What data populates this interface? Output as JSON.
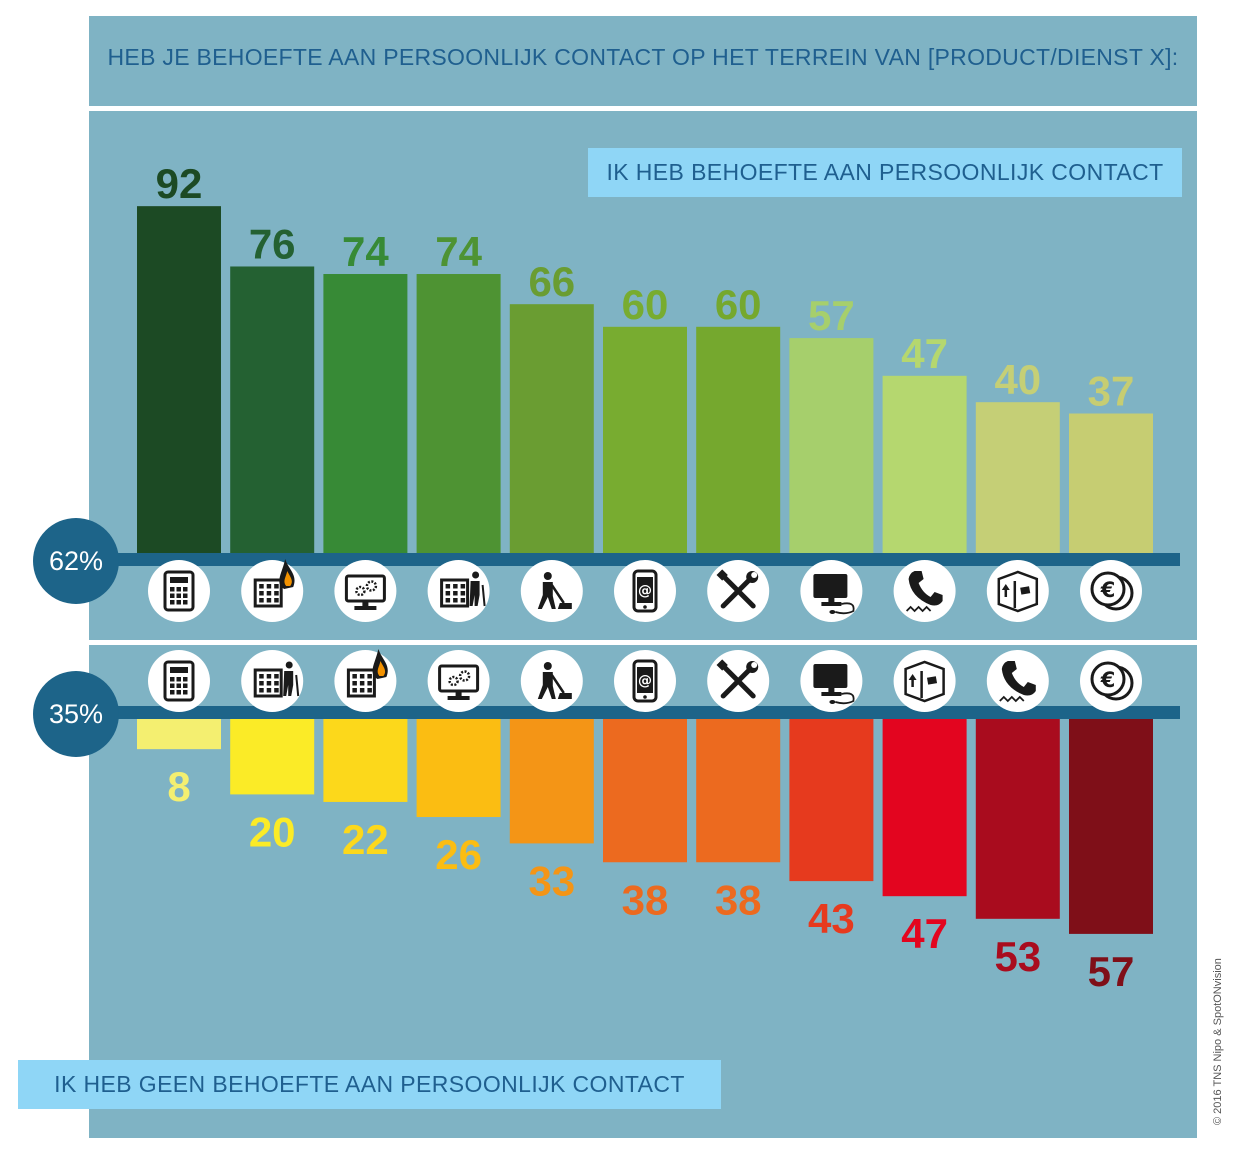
{
  "title": "HEB JE BEHOEFTE AAN PERSOONLIJK CONTACT OP HET TERREIN VAN [PRODUCT/DIENST X]:",
  "legend_top": "IK HEB BEHOEFTE AAN PERSOONLIJK CONTACT",
  "legend_bottom": "IK HEB GEEN BEHOEFTE AAN PERSOONLIJK CONTACT",
  "pct_top": "62%",
  "pct_bottom": "35%",
  "copyright": "© 2016 TNS Nipo & SpotONvision",
  "chart_data": [
    {
      "type": "bar",
      "legend": "IK HEB BEHOEFTE AAN PERSOONLIJK CONTACT",
      "summary_label": "62%",
      "ylim": [
        0,
        100
      ],
      "categories": [
        "calculator-icon",
        "building-fire-icon",
        "computer-gear-icon",
        "building-person-icon",
        "person-vacuum-icon",
        "smartphone-email-icon",
        "tools-icon",
        "computer-mouse-icon",
        "phone-icon",
        "package-icon",
        "coins-icon"
      ],
      "values": [
        92,
        76,
        74,
        74,
        66,
        60,
        60,
        57,
        47,
        40,
        37
      ],
      "colors": [
        "#1c4a24",
        "#246132",
        "#378a36",
        "#4e9333",
        "#6a9d32",
        "#78ac30",
        "#75a82e",
        "#a6cf6c",
        "#b5d76f",
        "#c5cf76",
        "#c6cd72"
      ],
      "label_colors": [
        "#1c4a24",
        "#246132",
        "#378a36",
        "#4e9333",
        "#6a9d32",
        "#78ac30",
        "#75a82e",
        "#a6cf6c",
        "#b5d76f",
        "#c5cf76",
        "#c6cd72"
      ]
    },
    {
      "type": "bar",
      "legend": "IK HEB GEEN BEHOEFTE AAN PERSOONLIJK CONTACT",
      "summary_label": "35%",
      "ylim": [
        0,
        100
      ],
      "categories": [
        "calculator-icon",
        "building-person-icon",
        "building-fire-icon",
        "computer-gear-icon",
        "person-vacuum-icon",
        "smartphone-email-icon",
        "tools-icon",
        "computer-mouse-icon",
        "package-icon",
        "phone-icon",
        "coins-icon"
      ],
      "values": [
        8,
        20,
        22,
        26,
        33,
        38,
        38,
        43,
        47,
        53,
        57
      ],
      "colors": [
        "#f4ef70",
        "#fbeb27",
        "#fcd81b",
        "#fbbd12",
        "#f49516",
        "#ec6a1f",
        "#ec6a1f",
        "#e63a1e",
        "#e3051f",
        "#a90c1e",
        "#7f0f18"
      ],
      "label_colors": [
        "#f4ef70",
        "#fbeb27",
        "#fcd81b",
        "#fbbd12",
        "#f49516",
        "#ec6a1f",
        "#ec6a1f",
        "#e63a1e",
        "#e3051f",
        "#a90c1e",
        "#7f0f18"
      ]
    }
  ]
}
